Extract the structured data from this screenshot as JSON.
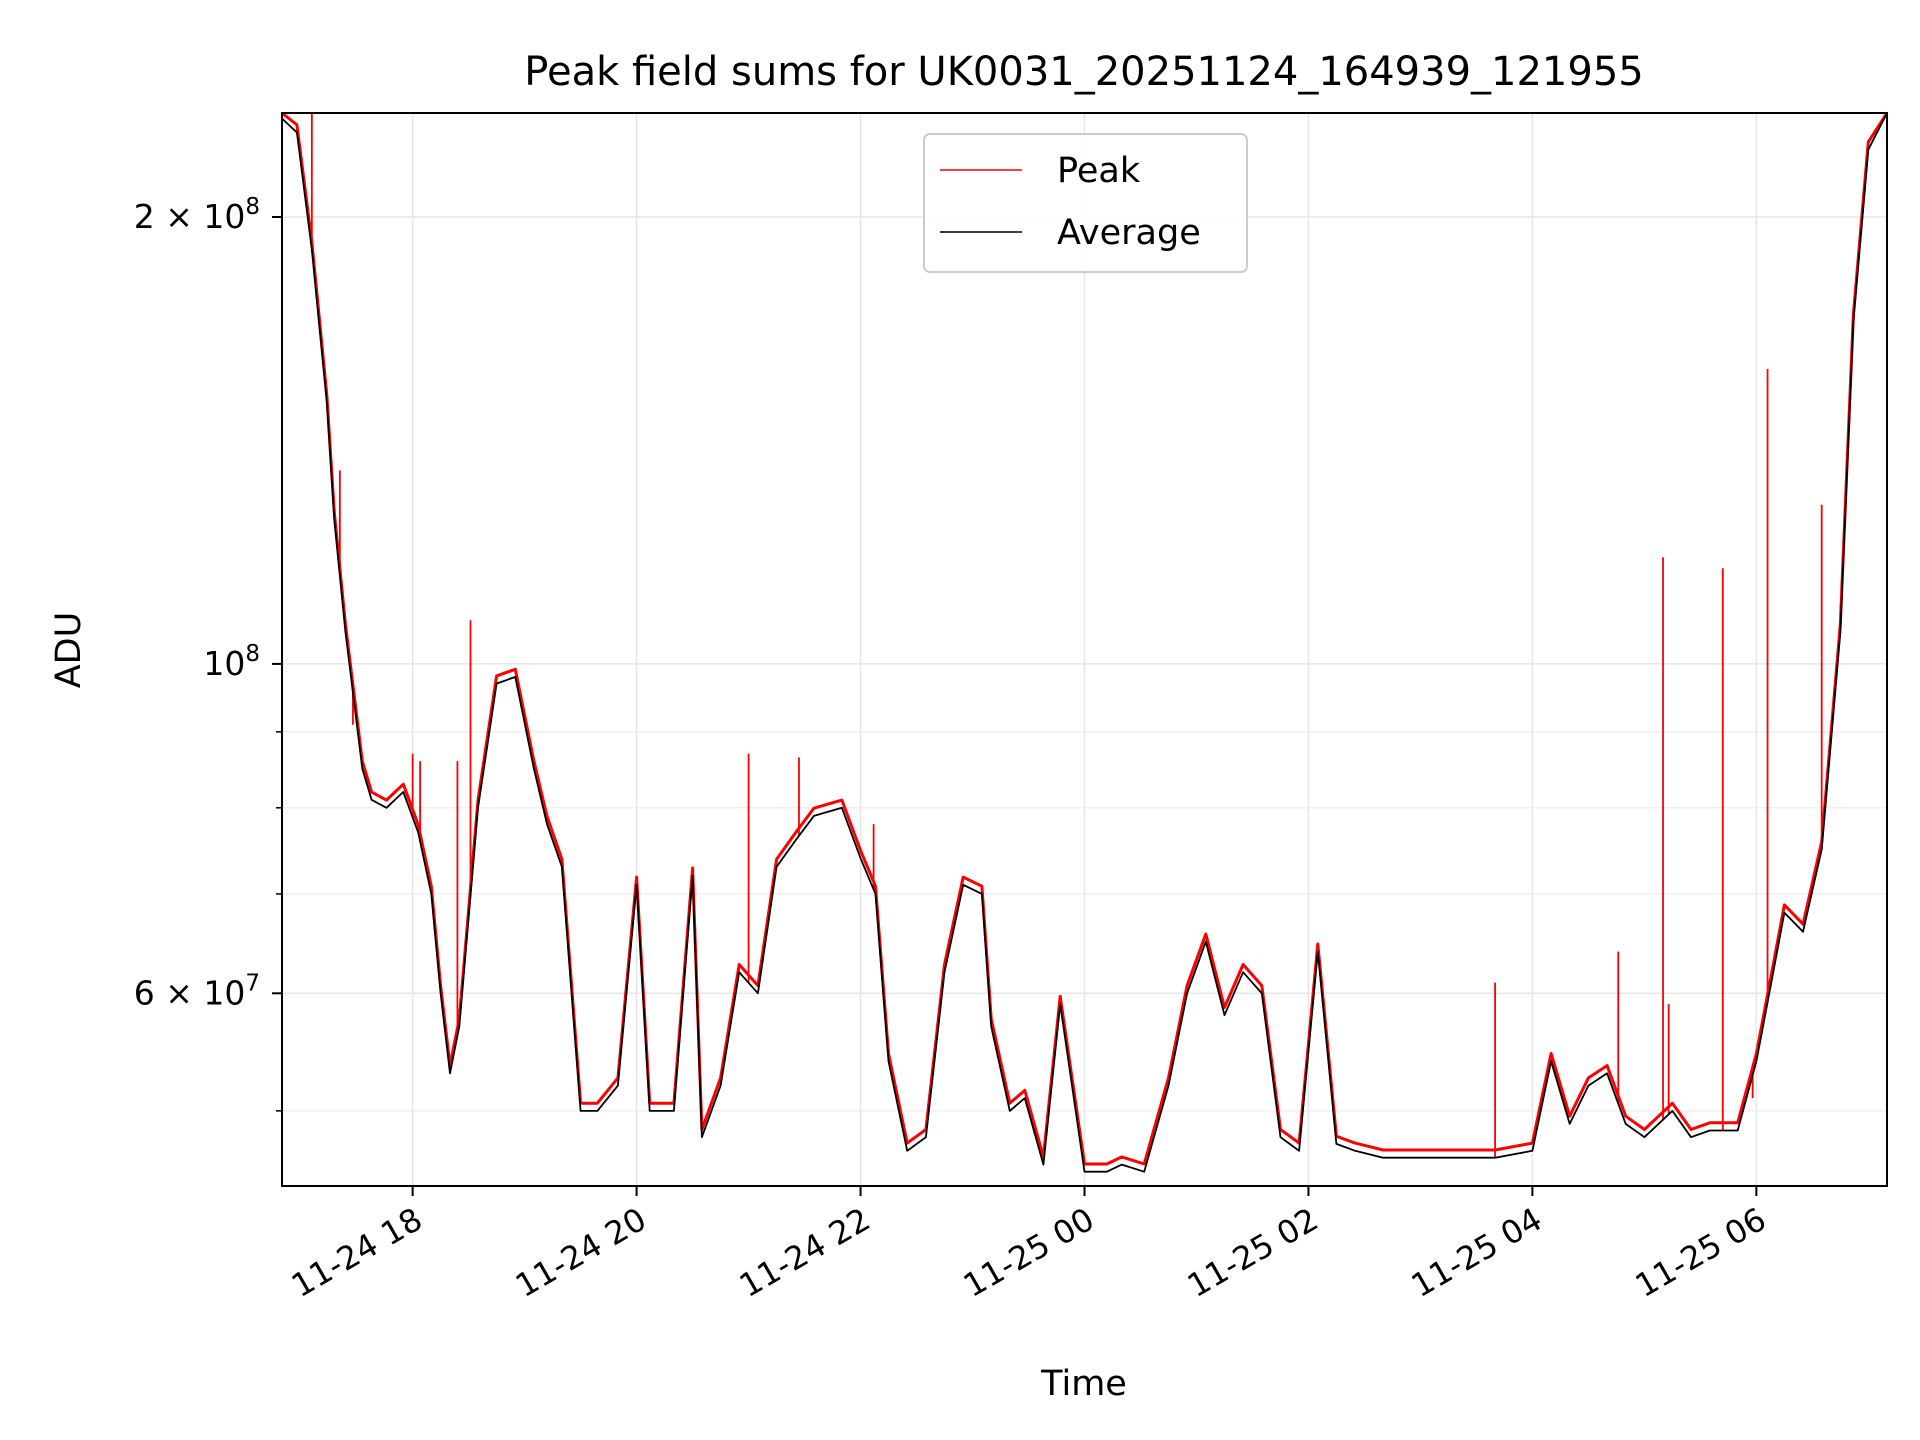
{
  "chart_data": {
    "type": "line",
    "title": "Peak field sums for UK0031_20251124_164939_121955",
    "xlabel": "Time",
    "ylabel": "ADU",
    "yscale": "log",
    "grid": true,
    "legend_position": "top-center",
    "xlim": [
      "2025-11-24 16:50",
      "2025-11-25 07:10"
    ],
    "ylim": [
      44500000,
      235000000
    ],
    "x_ticks": [
      {
        "value": "2025-11-24 18:00",
        "label": "11-24 18"
      },
      {
        "value": "2025-11-24 20:00",
        "label": "11-24 20"
      },
      {
        "value": "2025-11-24 22:00",
        "label": "11-24 22"
      },
      {
        "value": "2025-11-25 00:00",
        "label": "11-25 00"
      },
      {
        "value": "2025-11-25 02:00",
        "label": "11-25 02"
      },
      {
        "value": "2025-11-25 04:00",
        "label": "11-25 04"
      },
      {
        "value": "2025-11-25 06:00",
        "label": "11-25 06"
      }
    ],
    "y_major_ticks": [
      {
        "value": 200000000,
        "mantissa": "2",
        "exponent": "8"
      },
      {
        "value": 100000000,
        "mantissa": "",
        "exponent": "8"
      },
      {
        "value": 60000000,
        "mantissa": "6",
        "exponent": "7"
      }
    ],
    "y_minor_ticks": [
      50000000,
      70000000,
      80000000,
      90000000
    ],
    "series": [
      {
        "name": "Average",
        "color": "#000000",
        "x": [
          "2025-11-24 16:50",
          "2025-11-24 16:58",
          "2025-11-24 17:06",
          "2025-11-24 17:14",
          "2025-11-24 17:18",
          "2025-11-24 17:24",
          "2025-11-24 17:33",
          "2025-11-24 17:38",
          "2025-11-24 17:46",
          "2025-11-24 17:55",
          "2025-11-24 18:03",
          "2025-11-24 18:10",
          "2025-11-24 18:15",
          "2025-11-24 18:20",
          "2025-11-24 18:25",
          "2025-11-24 18:35",
          "2025-11-24 18:45",
          "2025-11-24 18:55",
          "2025-11-24 19:05",
          "2025-11-24 19:12",
          "2025-11-24 19:20",
          "2025-11-24 19:30",
          "2025-11-24 19:39",
          "2025-11-24 19:50",
          "2025-11-24 20:00",
          "2025-11-24 20:07",
          "2025-11-24 20:12",
          "2025-11-24 20:20",
          "2025-11-24 20:30",
          "2025-11-24 20:35",
          "2025-11-24 20:45",
          "2025-11-24 20:55",
          "2025-11-24 21:05",
          "2025-11-24 21:15",
          "2025-11-24 21:25",
          "2025-11-24 21:35",
          "2025-11-24 21:50",
          "2025-11-24 22:00",
          "2025-11-24 22:08",
          "2025-11-24 22:15",
          "2025-11-24 22:25",
          "2025-11-24 22:35",
          "2025-11-24 22:45",
          "2025-11-24 22:55",
          "2025-11-24 23:05",
          "2025-11-24 23:10",
          "2025-11-24 23:20",
          "2025-11-24 23:28",
          "2025-11-24 23:38",
          "2025-11-24 23:47",
          "2025-11-25 00:00",
          "2025-11-25 00:12",
          "2025-11-25 00:20",
          "2025-11-25 00:32",
          "2025-11-25 00:45",
          "2025-11-25 00:55",
          "2025-11-25 01:05",
          "2025-11-25 01:15",
          "2025-11-25 01:25",
          "2025-11-25 01:35",
          "2025-11-25 01:45",
          "2025-11-25 01:55",
          "2025-11-25 02:05",
          "2025-11-25 02:15",
          "2025-11-25 02:25",
          "2025-11-25 02:40",
          "2025-11-25 03:00",
          "2025-11-25 03:20",
          "2025-11-25 03:40",
          "2025-11-25 04:00",
          "2025-11-25 04:10",
          "2025-11-25 04:20",
          "2025-11-25 04:30",
          "2025-11-25 04:40",
          "2025-11-25 04:50",
          "2025-11-25 05:00",
          "2025-11-25 05:15",
          "2025-11-25 05:25",
          "2025-11-25 05:35",
          "2025-11-25 05:50",
          "2025-11-25 06:00",
          "2025-11-25 06:08",
          "2025-11-25 06:15",
          "2025-11-25 06:25",
          "2025-11-25 06:35",
          "2025-11-25 06:45",
          "2025-11-25 06:52",
          "2025-11-25 07:00",
          "2025-11-25 07:10"
        ],
        "values": [
          233000000,
          228000000,
          190000000,
          150000000,
          125000000,
          105000000,
          85000000,
          81000000,
          80000000,
          82000000,
          77000000,
          70000000,
          60000000,
          53000000,
          57000000,
          80000000,
          97000000,
          98000000,
          85000000,
          78000000,
          73000000,
          50000000,
          50000000,
          52000000,
          71000000,
          50000000,
          50000000,
          50000000,
          72000000,
          48000000,
          52000000,
          62000000,
          60000000,
          73000000,
          76000000,
          79000000,
          80000000,
          74000000,
          70000000,
          54000000,
          47000000,
          48000000,
          62000000,
          71000000,
          70000000,
          57000000,
          50000000,
          51000000,
          46000000,
          59000000,
          45500000,
          45500000,
          46000000,
          45500000,
          52000000,
          60000000,
          65000000,
          58000000,
          62000000,
          60000000,
          48000000,
          47000000,
          64000000,
          47500000,
          47000000,
          46500000,
          46500000,
          46500000,
          46500000,
          47000000,
          54000000,
          49000000,
          52000000,
          53000000,
          49000000,
          48000000,
          50000000,
          48000000,
          48500000,
          48500000,
          54000000,
          61000000,
          68000000,
          66000000,
          75000000,
          105000000,
          170000000,
          222000000,
          235000000
        ]
      },
      {
        "name": "Peak",
        "color": "#ff0000",
        "offset_ratio": 1.012,
        "spikes": [
          {
            "x": "2025-11-24 17:06",
            "value": 235000000
          },
          {
            "x": "2025-11-24 17:08",
            "value": 180000000
          },
          {
            "x": "2025-11-24 17:21",
            "value": 135000000
          },
          {
            "x": "2025-11-24 17:28",
            "value": 91000000
          },
          {
            "x": "2025-11-24 18:00",
            "value": 87000000
          },
          {
            "x": "2025-11-24 18:04",
            "value": 86000000
          },
          {
            "x": "2025-11-24 18:24",
            "value": 86000000
          },
          {
            "x": "2025-11-24 18:31",
            "value": 107000000
          },
          {
            "x": "2025-11-24 21:00",
            "value": 87000000
          },
          {
            "x": "2025-11-24 21:27",
            "value": 86500000
          },
          {
            "x": "2025-11-24 22:07",
            "value": 78000000
          },
          {
            "x": "2025-11-25 03:40",
            "value": 61000000
          },
          {
            "x": "2025-11-25 04:46",
            "value": 64000000
          },
          {
            "x": "2025-11-25 05:10",
            "value": 118000000
          },
          {
            "x": "2025-11-25 05:13",
            "value": 59000000
          },
          {
            "x": "2025-11-25 05:42",
            "value": 116000000
          },
          {
            "x": "2025-11-25 05:58",
            "value": 51000000
          },
          {
            "x": "2025-11-25 06:06",
            "value": 158000000
          },
          {
            "x": "2025-11-25 06:35",
            "value": 128000000
          }
        ]
      }
    ]
  }
}
